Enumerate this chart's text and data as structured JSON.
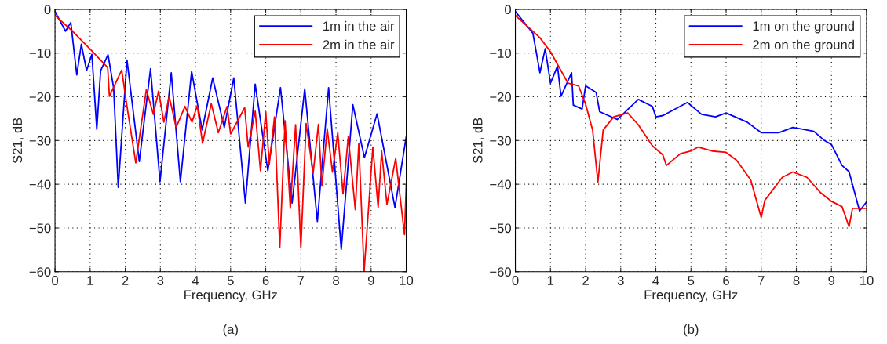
{
  "chart_data": [
    {
      "type": "line",
      "xlabel": "Frequency, GHz",
      "ylabel": "S21, dB",
      "annotations": [
        "(a)"
      ],
      "xlim": [
        0,
        10
      ],
      "ylim": [
        -60,
        0
      ],
      "xticks": [
        0,
        1,
        2,
        3,
        4,
        5,
        6,
        7,
        8,
        9,
        10
      ],
      "yticks": [
        -60,
        -50,
        -40,
        -30,
        -20,
        -10,
        0
      ],
      "grid": true,
      "legend": "top right",
      "line_style": "solid",
      "marker": "none",
      "series": [
        {
          "name": "1m in the air",
          "color": "#0000ff",
          "x": [
            0,
            0.3,
            0.45,
            0.62,
            0.75,
            0.9,
            1.05,
            1.19,
            1.3,
            1.51,
            1.67,
            1.8,
            2.05,
            2.4,
            2.72,
            2.99,
            3.31,
            3.57,
            3.89,
            4.19,
            4.49,
            4.82,
            5.09,
            5.42,
            5.7,
            6.06,
            6.42,
            6.75,
            7.11,
            7.47,
            7.79,
            8.15,
            8.48,
            8.81,
            9.17,
            9.68,
            10
          ],
          "values": [
            -0.5,
            -5,
            -3,
            -15,
            -8,
            -14,
            -10.3,
            -27.4,
            -14,
            -10.4,
            -18,
            -40.7,
            -11.6,
            -34.8,
            -13.6,
            -39.4,
            -14.5,
            -39.4,
            -14.2,
            -27.6,
            -15.7,
            -27,
            -15.7,
            -44.3,
            -17.1,
            -36.9,
            -17.9,
            -44.3,
            -18.2,
            -48.5,
            -17.9,
            -54.9,
            -21.8,
            -33.9,
            -23.9,
            -45.3,
            -29.1
          ]
        },
        {
          "name": "2m in the air",
          "color": "#ff0000",
          "x": [
            0,
            0.5,
            1.0,
            1.5,
            1.55,
            1.9,
            2.05,
            2.3,
            2.6,
            2.8,
            2.95,
            3.1,
            3.25,
            3.45,
            3.7,
            3.9,
            4.05,
            4.2,
            4.45,
            4.65,
            4.9,
            5.0,
            5.4,
            5.5,
            5.7,
            5.85,
            6.0,
            6.1,
            6.25,
            6.4,
            6.55,
            6.7,
            6.85,
            7.0,
            7.15,
            7.35,
            7.5,
            7.6,
            7.75,
            7.9,
            8.05,
            8.2,
            8.35,
            8.55,
            8.65,
            8.8,
            9.05,
            9.2,
            9.3,
            9.45,
            9.7,
            9.95,
            10
          ],
          "values": [
            -1.4,
            -5,
            -9.1,
            -13.3,
            -19.9,
            -13.9,
            -22.2,
            -35.1,
            -18.4,
            -24,
            -18.7,
            -25.8,
            -19.9,
            -27,
            -22.2,
            -25.8,
            -22,
            -30.6,
            -21.6,
            -28.2,
            -22.2,
            -28.5,
            -22.5,
            -31.5,
            -23.3,
            -36.9,
            -23.4,
            -35.4,
            -24.6,
            -54.5,
            -25.5,
            -45.5,
            -26.4,
            -54.5,
            -26.1,
            -37.5,
            -26.3,
            -40.4,
            -27.3,
            -37.2,
            -28.2,
            -42.2,
            -29.1,
            -45.8,
            -30.6,
            -60,
            -31.5,
            -45.3,
            -32.4,
            -44.6,
            -34.1,
            -51.5,
            -40.1
          ]
        }
      ]
    },
    {
      "type": "line",
      "xlabel": "Frequency, GHz",
      "ylabel": "S21, dB",
      "annotations": [
        "(b)"
      ],
      "xlim": [
        0,
        10
      ],
      "ylim": [
        -60,
        0
      ],
      "xticks": [
        0,
        1,
        2,
        3,
        4,
        5,
        6,
        7,
        8,
        9,
        10
      ],
      "yticks": [
        -60,
        -50,
        -40,
        -30,
        -20,
        -10,
        0
      ],
      "grid": true,
      "legend": "top right",
      "line_style": "solid",
      "marker": "none",
      "series": [
        {
          "name": "1m on the ground",
          "color": "#0000ff",
          "x": [
            0,
            0.5,
            0.7,
            0.85,
            1.0,
            1.2,
            1.3,
            1.6,
            1.65,
            1.9,
            2.0,
            2.3,
            2.4,
            2.9,
            3.5,
            3.9,
            4.0,
            4.2,
            4.9,
            5.3,
            5.7,
            6.0,
            6.6,
            7.0,
            7.5,
            7.9,
            8.5,
            8.8,
            9.0,
            9.3,
            9.5,
            9.8,
            10
          ],
          "values": [
            -0.5,
            -5.5,
            -14.5,
            -9,
            -16.9,
            -13,
            -19.9,
            -14.5,
            -21.9,
            -22.8,
            -17.5,
            -19,
            -23.4,
            -25.2,
            -20.6,
            -22.2,
            -24.6,
            -24.3,
            -21.3,
            -24,
            -24.6,
            -23.7,
            -25.8,
            -28.2,
            -28.2,
            -27,
            -27.9,
            -30,
            -30.9,
            -35.7,
            -37.1,
            -46.1,
            -44
          ]
        },
        {
          "name": "2m on the ground",
          "color": "#ff0000",
          "x": [
            0,
            0.7,
            1.0,
            1.5,
            1.8,
            2.0,
            2.2,
            2.35,
            2.5,
            2.8,
            3.2,
            3.5,
            3.9,
            4.2,
            4.3,
            4.7,
            5.0,
            5.2,
            5.6,
            6.0,
            6.3,
            6.7,
            7.0,
            7.1,
            7.6,
            7.9,
            8.3,
            8.7,
            9.0,
            9.3,
            9.5,
            9.6,
            10
          ],
          "values": [
            -1.4,
            -6.5,
            -9.7,
            -16.9,
            -17.5,
            -21.7,
            -27.6,
            -39.5,
            -27.6,
            -24.6,
            -23.7,
            -26.4,
            -31.2,
            -33.3,
            -35.7,
            -33,
            -32.4,
            -31.5,
            -32.4,
            -32.7,
            -34.5,
            -39,
            -47.6,
            -43.7,
            -38.4,
            -37.2,
            -38.4,
            -42,
            -43.9,
            -45.1,
            -49.7,
            -45.5,
            -45.5
          ]
        }
      ]
    }
  ]
}
